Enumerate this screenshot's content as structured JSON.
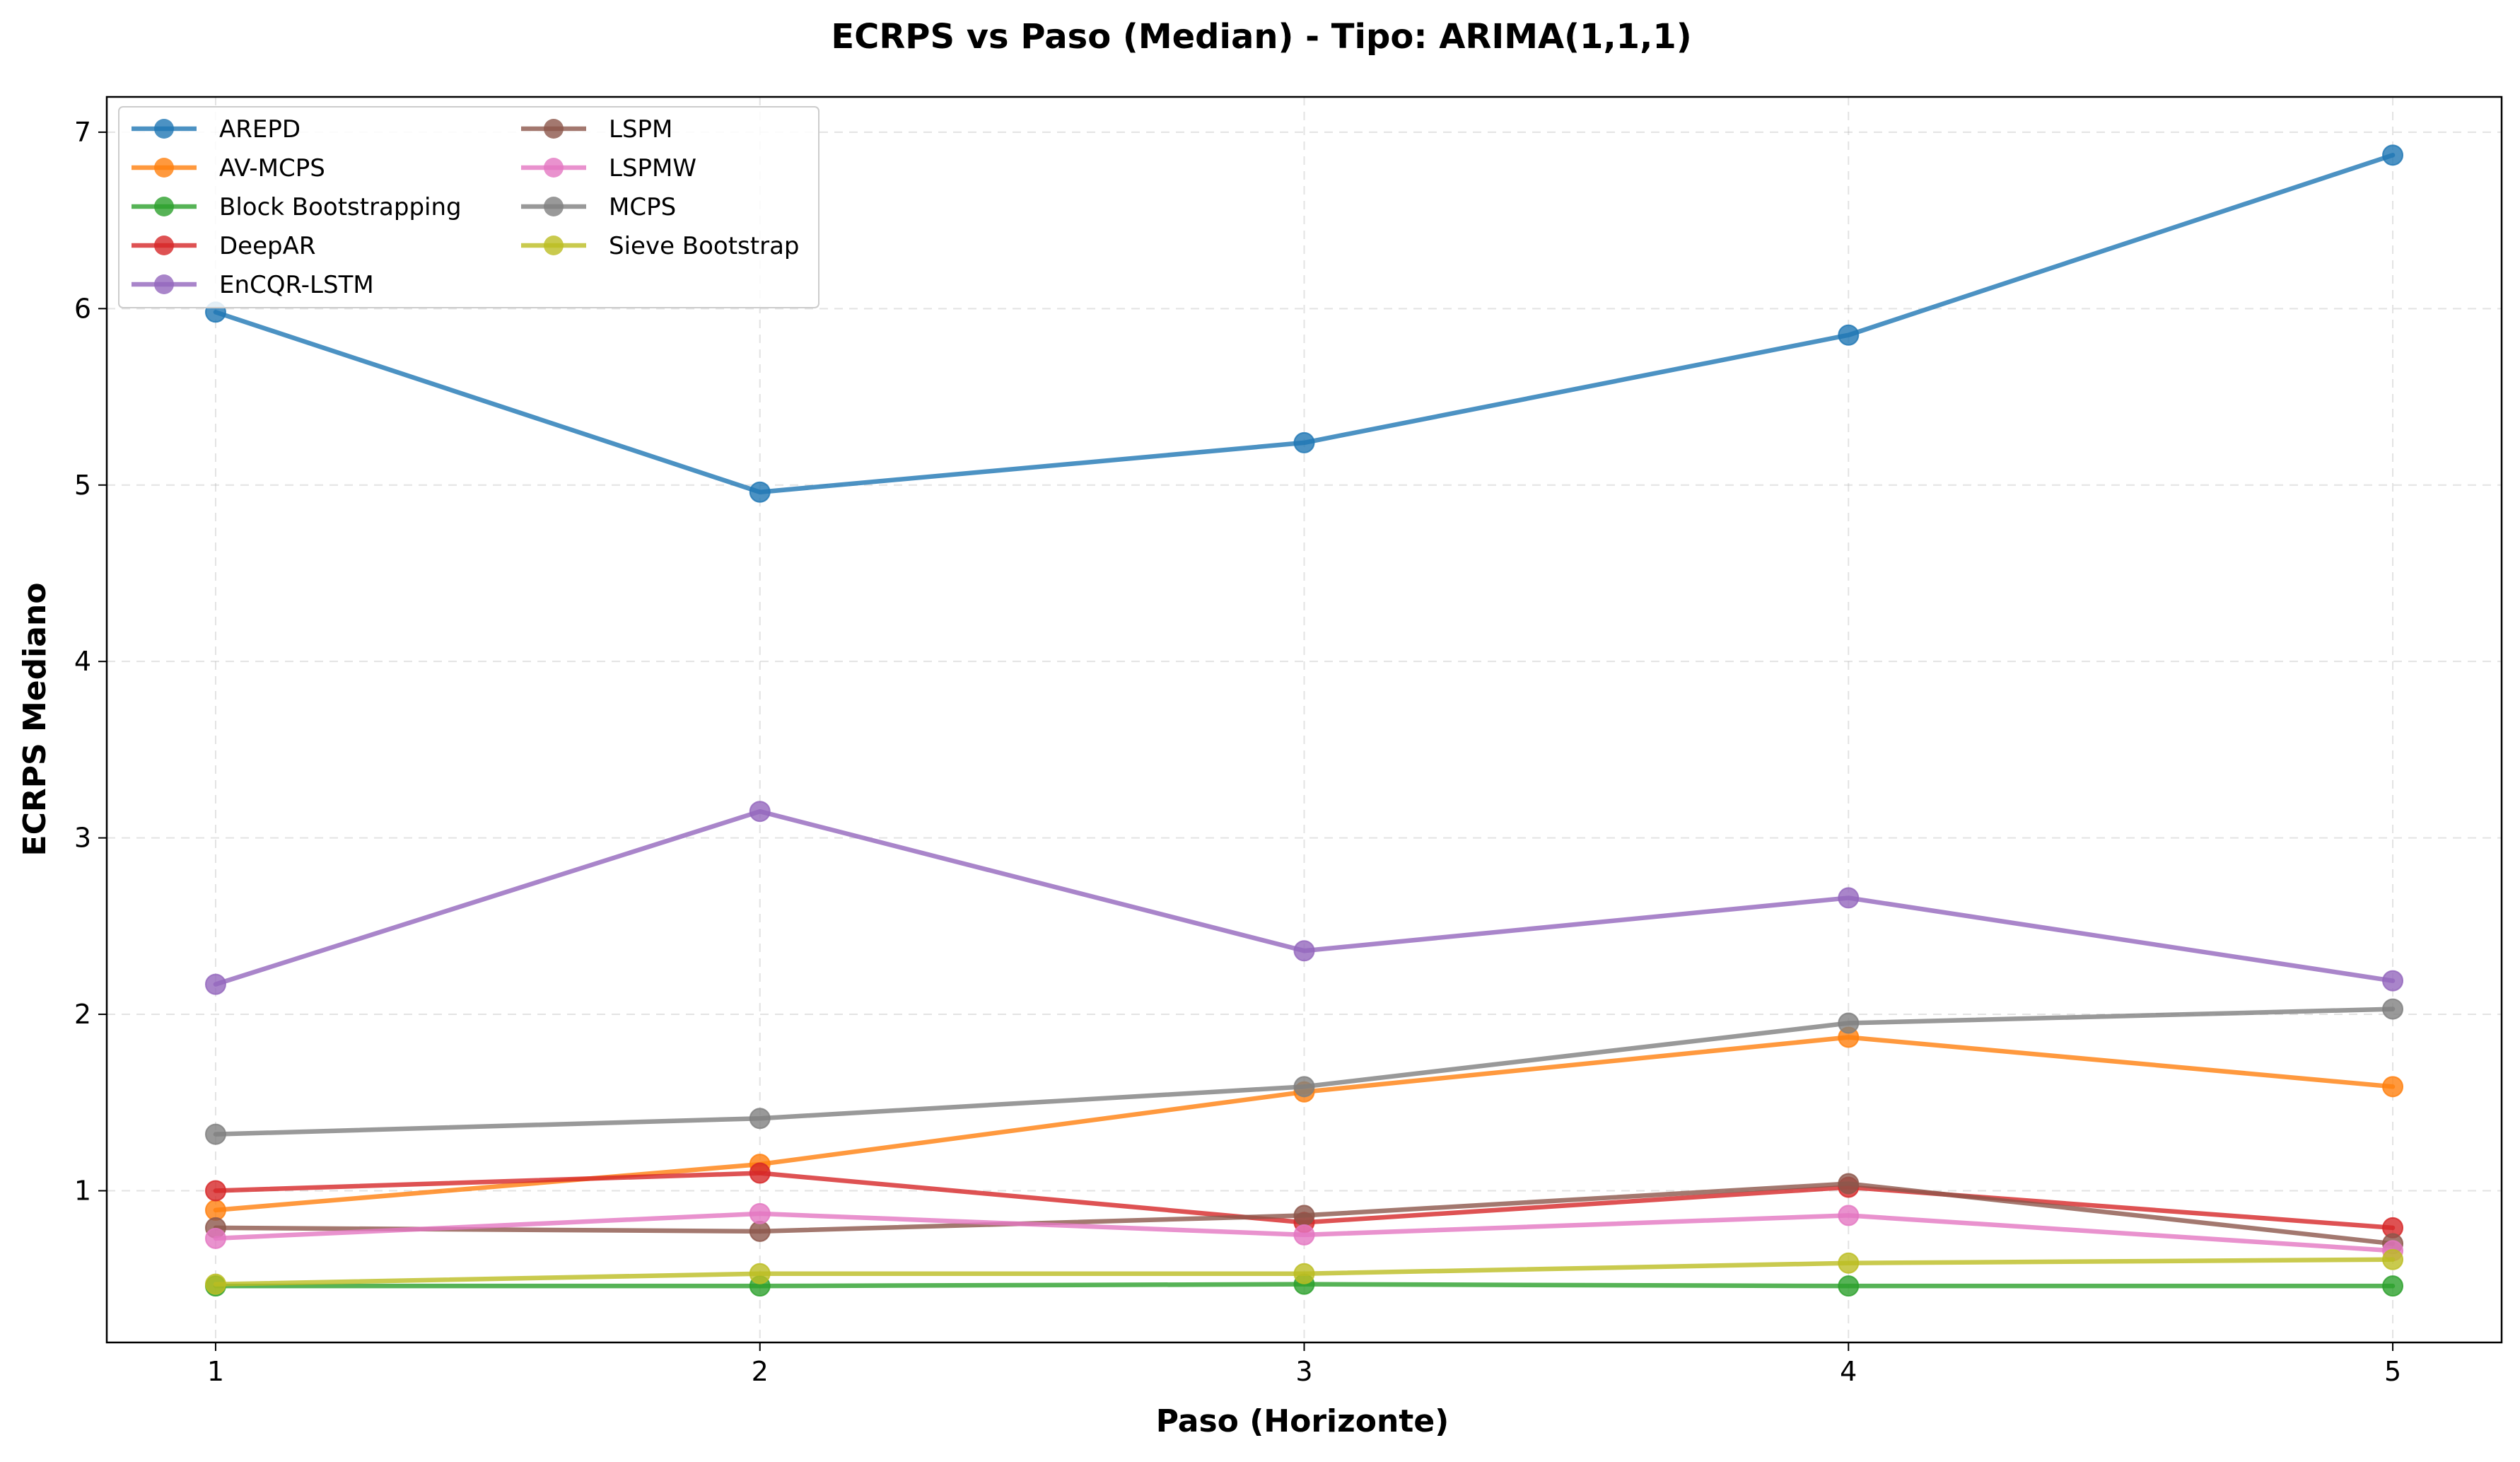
{
  "chart_data": {
    "type": "line",
    "title": "ECRPS vs Paso (Median) - Tipo: ARIMA(1,1,1)",
    "xlabel": "Paso (Horizonte)",
    "ylabel": "ECRPS Mediano",
    "x": [
      1,
      2,
      3,
      4,
      5
    ],
    "x_ticks": [
      "1",
      "2",
      "3",
      "4",
      "5"
    ],
    "y_ticks": [
      "1",
      "2",
      "3",
      "4",
      "5",
      "6",
      "7"
    ],
    "xlim": [
      0.8,
      5.2
    ],
    "ylim": [
      0.14,
      7.2
    ],
    "grid": true,
    "legend_position": "top-left",
    "legend_columns": 2,
    "series": [
      {
        "name": "AREPD",
        "color": "#1f77b4",
        "values": [
          5.98,
          4.96,
          5.24,
          5.85,
          6.87
        ]
      },
      {
        "name": "AV-MCPS",
        "color": "#ff7f0e",
        "values": [
          0.89,
          1.15,
          1.56,
          1.87,
          1.59
        ]
      },
      {
        "name": "Block Bootstrapping",
        "color": "#2ca02c",
        "values": [
          0.46,
          0.46,
          0.47,
          0.46,
          0.46
        ]
      },
      {
        "name": "DeepAR",
        "color": "#d62728",
        "values": [
          1.0,
          1.1,
          0.82,
          1.02,
          0.79
        ]
      },
      {
        "name": "EnCQR-LSTM",
        "color": "#9467bd",
        "values": [
          2.17,
          3.15,
          2.36,
          2.66,
          2.19
        ]
      },
      {
        "name": "LSPM",
        "color": "#8c564b",
        "values": [
          0.79,
          0.77,
          0.86,
          1.04,
          0.7
        ]
      },
      {
        "name": "LSPMW",
        "color": "#e377c2",
        "values": [
          0.73,
          0.87,
          0.75,
          0.86,
          0.66
        ]
      },
      {
        "name": "MCPS",
        "color": "#7f7f7f",
        "values": [
          1.32,
          1.41,
          1.59,
          1.95,
          2.03
        ]
      },
      {
        "name": "Sieve Bootstrap",
        "color": "#bcbd22",
        "values": [
          0.47,
          0.53,
          0.53,
          0.59,
          0.61
        ]
      }
    ]
  }
}
